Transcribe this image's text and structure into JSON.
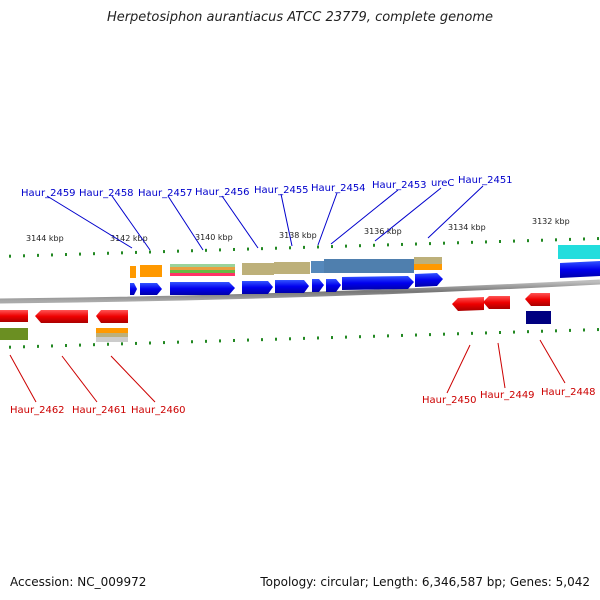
{
  "title": "Herpetosiphon aurantiacus ATCC 23779, complete genome",
  "footer": {
    "accession": "Accession: NC_009972",
    "topology": "Topology: circular; Length: 6,346,587 bp; Genes: 5,042"
  },
  "ticks": {
    "major_labels": [
      "3144 kbp",
      "3142 kbp",
      "3140 kbp",
      "3138 kbp",
      "3136 kbp",
      "3134 kbp",
      "3132 kbp"
    ]
  },
  "genes_top": [
    {
      "name": "Haur_2459",
      "color": "#0000cc"
    },
    {
      "name": "Haur_2458",
      "color": "#0000cc"
    },
    {
      "name": "Haur_2457",
      "color": "#0000cc"
    },
    {
      "name": "Haur_2456",
      "color": "#0000cc"
    },
    {
      "name": "Haur_2455",
      "color": "#0000cc"
    },
    {
      "name": "Haur_2454",
      "color": "#0000cc"
    },
    {
      "name": "Haur_2453",
      "color": "#0000cc"
    },
    {
      "name": "ureC",
      "color": "#0000cc"
    },
    {
      "name": "Haur_2451",
      "color": "#0000cc"
    }
  ],
  "genes_bottom": [
    {
      "name": "Haur_2462",
      "color": "#cc0000"
    },
    {
      "name": "Haur_2461",
      "color": "#cc0000"
    },
    {
      "name": "Haur_2460",
      "color": "#cc0000"
    },
    {
      "name": "Haur_2450",
      "color": "#cc0000"
    },
    {
      "name": "Haur_2449",
      "color": "#cc0000"
    },
    {
      "name": "Haur_2448",
      "color": "#cc0000"
    }
  ],
  "colors": {
    "forward_gene": "#0000ee",
    "reverse_gene": "#ee0000",
    "backbone": "#888888",
    "tick": "#228822",
    "label_forward": "#0000cc",
    "label_reverse": "#cc0000"
  }
}
